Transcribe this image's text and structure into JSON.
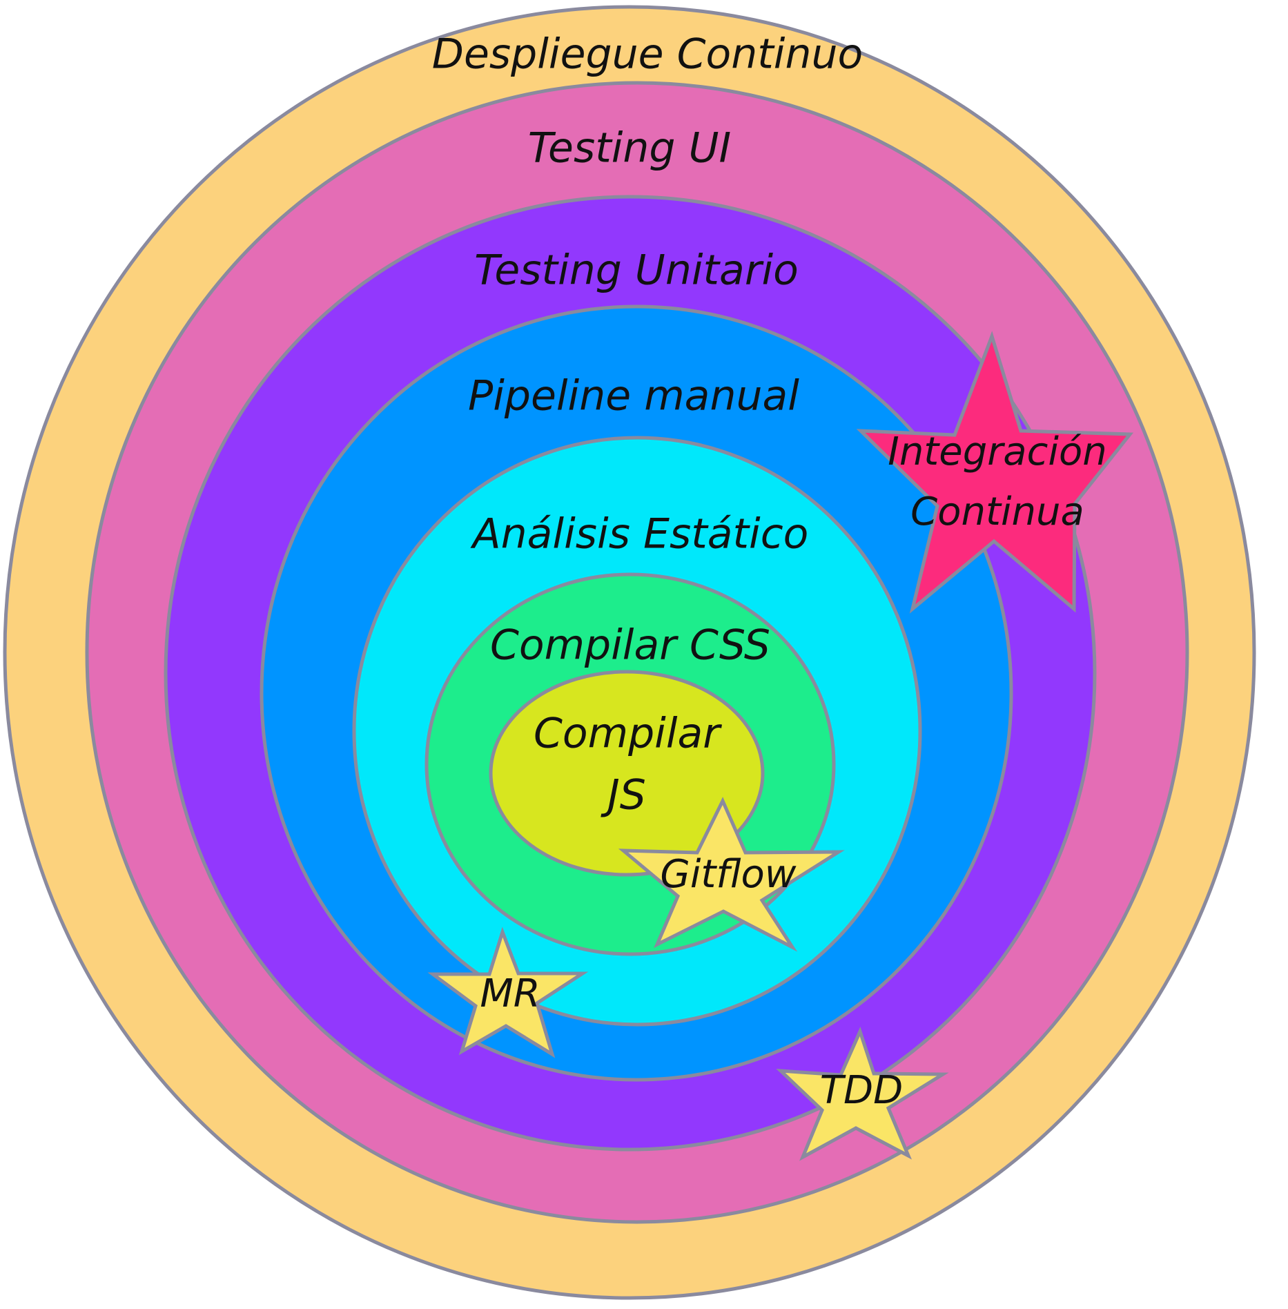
{
  "rings": [
    {
      "label": "Despliegue Continuo",
      "color": "#fcd27d"
    },
    {
      "label": "Testing UI",
      "color": "#e46db5"
    },
    {
      "label": "Testing Unitario",
      "color": "#9238fd"
    },
    {
      "label": "Pipeline manual",
      "color": "#0094ff"
    },
    {
      "label": "Análisis Estático",
      "color": "#00e8fb"
    },
    {
      "label": "Compilar CSS",
      "color": "#1ded8c"
    },
    {
      "label_lines": [
        "Compilar",
        "JS"
      ],
      "color": "#d7e61f"
    }
  ],
  "stars": [
    {
      "label_lines": [
        "Integración",
        "Continua"
      ],
      "color": "#fc2b7d"
    },
    {
      "label_lines": [
        "Gitflow"
      ],
      "color": "#fae566"
    },
    {
      "label_lines": [
        "MR"
      ],
      "color": "#fae566"
    },
    {
      "label_lines": [
        "TDD"
      ],
      "color": "#fae566"
    }
  ],
  "colors": {
    "outline": "#8a8a9e",
    "text": "#111111",
    "background": "#ffffff"
  }
}
